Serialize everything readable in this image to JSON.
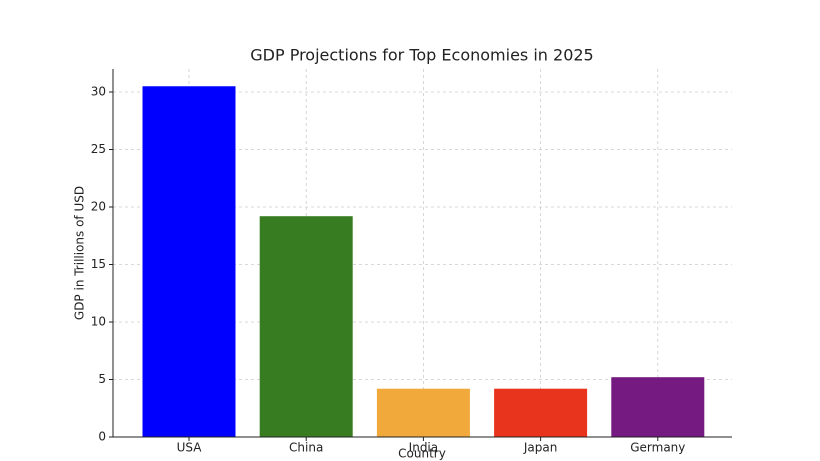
{
  "chart_data": {
    "type": "bar",
    "title": "GDP Projections for Top Economies in 2025",
    "x_label": "Country",
    "y_label": "GDP in Trillions of USD",
    "categories": [
      "USA",
      "China",
      "India",
      "Japan",
      "Germany"
    ],
    "values": [
      30.5,
      19.2,
      4.2,
      4.2,
      5.2
    ],
    "colors": [
      "#0000ff",
      "#387c22",
      "#f2a93b",
      "#e8341c",
      "#741a80"
    ],
    "ylim": [
      0,
      32
    ],
    "yticks": [
      0,
      5,
      10,
      15,
      20,
      25,
      30
    ],
    "grid": true
  }
}
